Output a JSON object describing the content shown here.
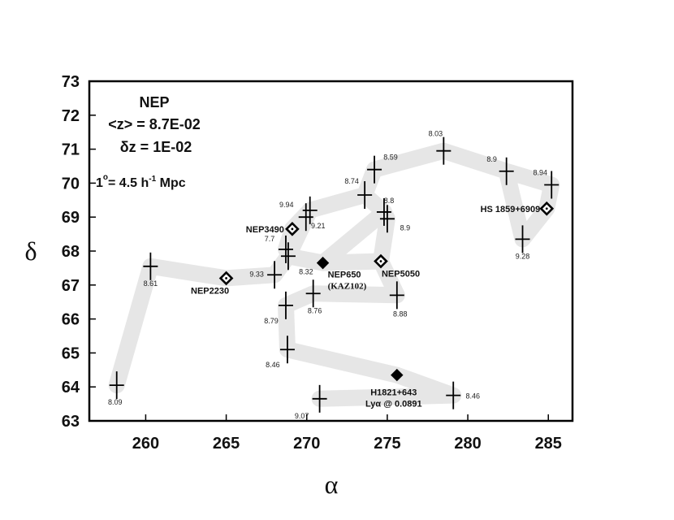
{
  "chart_data": {
    "type": "scatter",
    "title": "NEP",
    "xlabel": "α",
    "ylabel": "δ",
    "xlim": [
      256.5,
      286.5
    ],
    "ylim": [
      63,
      73
    ],
    "xticks": [
      260,
      265,
      270,
      275,
      280,
      285
    ],
    "yticks": [
      63,
      64,
      65,
      66,
      67,
      68,
      69,
      70,
      71,
      72,
      73
    ],
    "grid": false,
    "info": {
      "mean_z": "<z> = 8.7E-02",
      "dz": "δz = 1E-02",
      "scale_lhs": "1",
      "scale_deg": "o",
      "scale_eq": "= 4.5 h",
      "scale_exp": "-1",
      "scale_unit": " Mpc"
    },
    "points": [
      {
        "x": 258.2,
        "y": 64.05,
        "label": "8.09"
      },
      {
        "x": 260.3,
        "y": 67.55,
        "label": "8.61"
      },
      {
        "x": 268.0,
        "y": 67.3,
        "label": "9.33"
      },
      {
        "x": 268.7,
        "y": 68.05,
        "label": "7.7"
      },
      {
        "x": 268.85,
        "y": 67.85,
        "label": "8.32"
      },
      {
        "x": 268.7,
        "y": 66.4,
        "label": "8.79"
      },
      {
        "x": 268.8,
        "y": 65.1,
        "label": "8.46"
      },
      {
        "x": 269.95,
        "y": 69.0,
        "label": "9.94"
      },
      {
        "x": 270.2,
        "y": 69.2,
        "label": "9.21"
      },
      {
        "x": 270.4,
        "y": 66.75,
        "label": "8.76"
      },
      {
        "x": 270.8,
        "y": 63.65,
        "label": "9.07"
      },
      {
        "x": 273.6,
        "y": 69.65,
        "label": "8.74"
      },
      {
        "x": 274.2,
        "y": 70.4,
        "label": "8.59"
      },
      {
        "x": 274.8,
        "y": 69.15,
        "label": "8.8"
      },
      {
        "x": 275.0,
        "y": 68.95,
        "label": "8.9"
      },
      {
        "x": 275.6,
        "y": 66.7,
        "label": "8.88"
      },
      {
        "x": 278.5,
        "y": 70.95,
        "label": "8.03"
      },
      {
        "x": 279.1,
        "y": 63.75,
        "label": "8.46"
      },
      {
        "x": 282.4,
        "y": 70.35,
        "label": "8.9"
      },
      {
        "x": 283.4,
        "y": 68.35,
        "label": "9.28"
      },
      {
        "x": 285.2,
        "y": 69.95,
        "label": "8.94"
      }
    ],
    "objects": [
      {
        "name": "NEP2230",
        "x": 265.0,
        "y": 67.2,
        "marker": "open-diamond"
      },
      {
        "name": "NEP3490",
        "x": 269.1,
        "y": 68.65,
        "marker": "open-diamond"
      },
      {
        "name": "NEP650",
        "sub": "(KAZ102)",
        "x": 271.0,
        "y": 67.65,
        "marker": "filled-diamond"
      },
      {
        "name": "NEP5050",
        "x": 274.6,
        "y": 67.7,
        "marker": "open-diamond"
      },
      {
        "name": "HS 1859+6909",
        "x": 284.9,
        "y": 69.25,
        "marker": "open-diamond"
      },
      {
        "name": "H1821+643",
        "sub": "Lyα @ 0.0891",
        "x": 275.6,
        "y": 64.35,
        "marker": "filled-diamond"
      }
    ],
    "filaments": [
      [
        [
          258.2,
          64.05
        ],
        [
          260.3,
          67.55
        ],
        [
          265.0,
          67.2
        ],
        [
          268.0,
          67.3
        ],
        [
          268.85,
          67.85
        ],
        [
          271.0,
          67.65
        ],
        [
          274.6,
          67.7
        ],
        [
          275.6,
          66.7
        ],
        [
          270.4,
          66.75
        ],
        [
          268.7,
          66.4
        ],
        [
          268.8,
          65.1
        ],
        [
          275.6,
          64.35
        ],
        [
          279.1,
          63.75
        ],
        [
          270.8,
          63.65
        ]
      ],
      [
        [
          268.7,
          68.05
        ],
        [
          269.1,
          68.65
        ],
        [
          270.2,
          69.2
        ],
        [
          273.6,
          69.65
        ],
        [
          274.2,
          70.4
        ],
        [
          278.5,
          70.95
        ],
        [
          282.4,
          70.35
        ],
        [
          283.4,
          68.35
        ],
        [
          284.9,
          69.25
        ],
        [
          285.2,
          69.95
        ],
        [
          282.4,
          70.35
        ]
      ],
      [
        [
          270.2,
          69.2
        ],
        [
          268.85,
          67.85
        ]
      ],
      [
        [
          271.0,
          67.65
        ],
        [
          274.8,
          69.15
        ],
        [
          275.0,
          68.95
        ],
        [
          274.6,
          67.7
        ]
      ],
      [
        [
          274.8,
          69.15
        ],
        [
          273.6,
          69.65
        ]
      ]
    ]
  }
}
